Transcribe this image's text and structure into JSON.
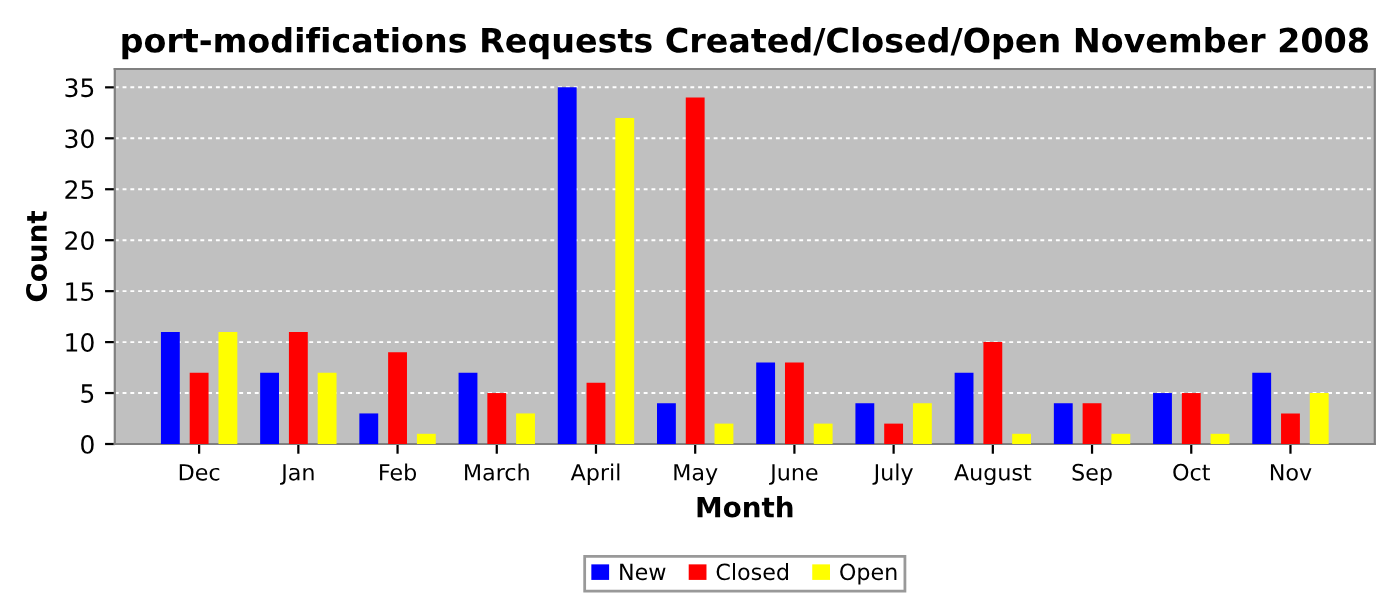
{
  "chart_data": {
    "type": "bar",
    "title": "port-modifications Requests Created/Closed/Open November 2008",
    "xlabel": "Month",
    "ylabel": "Count",
    "categories": [
      "Dec",
      "Jan",
      "Feb",
      "March",
      "April",
      "May",
      "June",
      "July",
      "August",
      "Sep",
      "Oct",
      "Nov"
    ],
    "series": [
      {
        "name": "New",
        "color": "#0000ff",
        "values": [
          11,
          7,
          3,
          7,
          35,
          4,
          8,
          4,
          7,
          4,
          5,
          7
        ]
      },
      {
        "name": "Closed",
        "color": "#ff0000",
        "values": [
          7,
          11,
          9,
          5,
          6,
          34,
          8,
          2,
          10,
          4,
          5,
          3
        ]
      },
      {
        "name": "Open",
        "color": "#ffff00",
        "values": [
          11,
          7,
          1,
          3,
          32,
          2,
          2,
          4,
          1,
          1,
          1,
          5
        ]
      }
    ],
    "ylim": [
      0,
      36.8
    ],
    "yticks": [
      0,
      5,
      10,
      15,
      20,
      25,
      30,
      35
    ],
    "grid": "y",
    "legend": "bottom"
  }
}
